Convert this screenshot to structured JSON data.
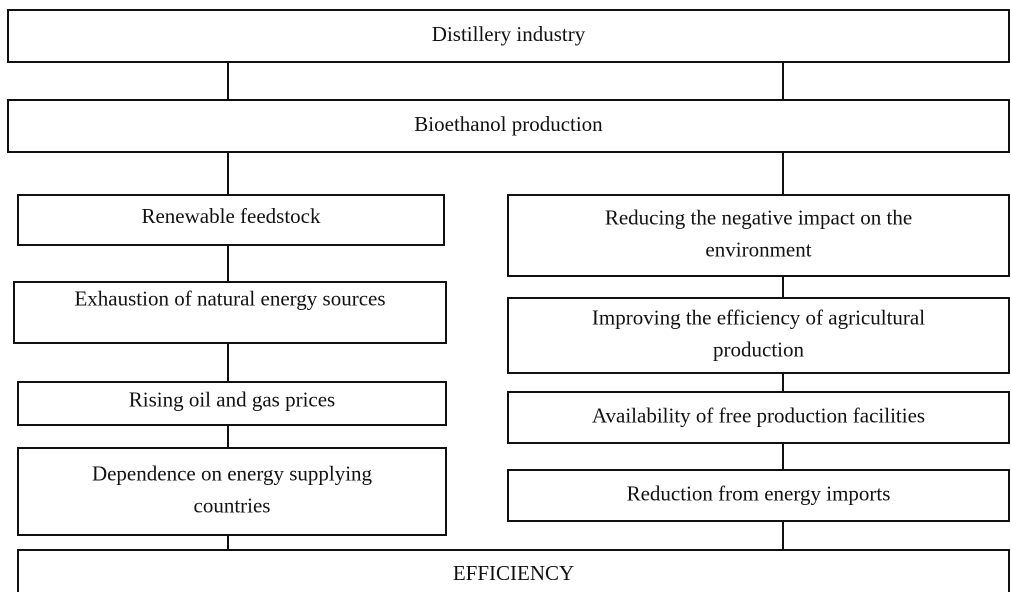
{
  "nodes": [
    {
      "lines": [
        "Distillery industry"
      ]
    },
    {
      "lines": [
        "Bioethanol production"
      ]
    },
    {
      "lines": [
        "Renewable feedstock"
      ]
    },
    {
      "lines": [
        "Exhaustion of natural energy sources"
      ]
    },
    {
      "lines": [
        "Rising oil and gas prices"
      ]
    },
    {
      "lines": [
        "Dependence on energy supplying",
        "countries"
      ]
    },
    {
      "lines": [
        "Reducing the negative impact on the",
        "environment"
      ]
    },
    {
      "lines": [
        "Improving the efficiency of agricultural",
        "production"
      ]
    },
    {
      "lines": [
        "Availability of free production facilities"
      ]
    },
    {
      "lines": [
        "Reduction from energy imports"
      ]
    },
    {
      "lines": [
        "EFFICIENCY"
      ]
    }
  ]
}
